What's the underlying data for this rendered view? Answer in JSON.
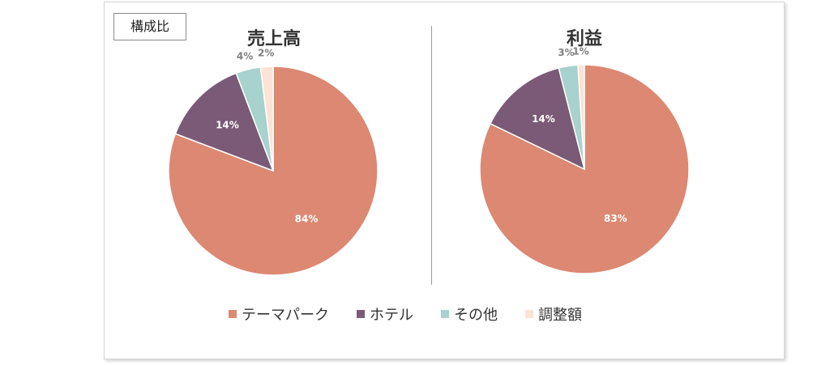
{
  "tag_label": "構成比",
  "legend": [
    {
      "label": "テーマパーク",
      "color": "#DC8872"
    },
    {
      "label": "ホテル",
      "color": "#7A5A76"
    },
    {
      "label": "その他",
      "color": "#A7D2CD"
    },
    {
      "label": "調整額",
      "color": "#FCE3D5"
    }
  ],
  "chart_data": [
    {
      "type": "pie",
      "title": "売上高",
      "categories": [
        "テーマパーク",
        "ホテル",
        "その他",
        "調整額"
      ],
      "values": [
        84,
        14,
        4,
        2
      ],
      "labels": [
        "84%",
        "14%",
        "4%",
        "2%"
      ]
    },
    {
      "type": "pie",
      "title": "利益",
      "categories": [
        "テーマパーク",
        "ホテル",
        "その他",
        "調整額"
      ],
      "values": [
        83,
        14,
        3,
        1
      ],
      "labels": [
        "83%",
        "14%",
        "3%",
        "1%"
      ]
    }
  ]
}
